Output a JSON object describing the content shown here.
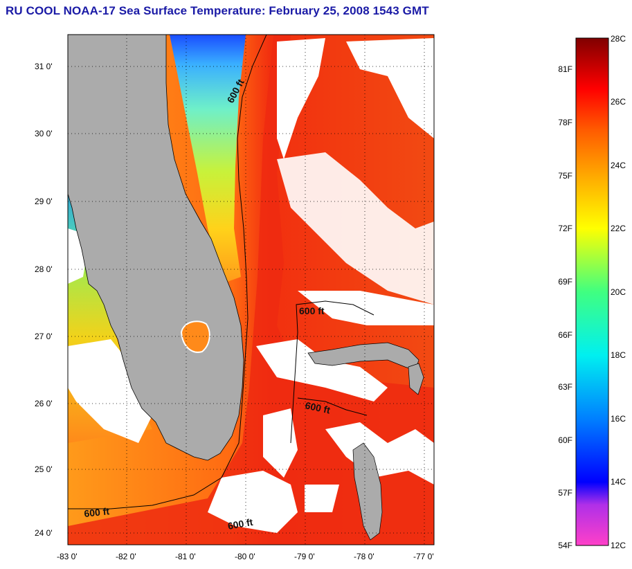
{
  "title": "RU COOL  NOAA-17  Sea Surface Temperature:  February 25, 2008 1543 GMT",
  "latitude_labels": [
    "31 0'",
    "30 0'",
    "29 0'",
    "28 0'",
    "27 0'",
    "26 0'",
    "25 0'",
    "24 0'"
  ],
  "longitude_labels": [
    "-83 0'",
    "-82 0'",
    "-81 0'",
    "-80 0'",
    "-79 0'",
    "-78 0'",
    "-77 0'"
  ],
  "contour_labels": [
    "600 ft",
    "600 ft",
    "600 ft",
    "600 ft",
    "600 ft"
  ],
  "colorbar": {
    "fahrenheit_labels": [
      "81F",
      "78F",
      "75F",
      "72F",
      "69F",
      "66F",
      "63F",
      "60F",
      "57F",
      "54F"
    ],
    "celsius_labels": [
      "28C",
      "26C",
      "24C",
      "22C",
      "20C",
      "18C",
      "16C",
      "14C",
      "12C"
    ],
    "range_c": [
      12,
      28
    ]
  },
  "colors": {
    "title": "#1a1aa6",
    "land": "#ababab",
    "cloud": "#ffffff",
    "gulf_stream": "#ee2a10",
    "shelf_cold": "#2a8cff",
    "coastline": "#000000"
  }
}
